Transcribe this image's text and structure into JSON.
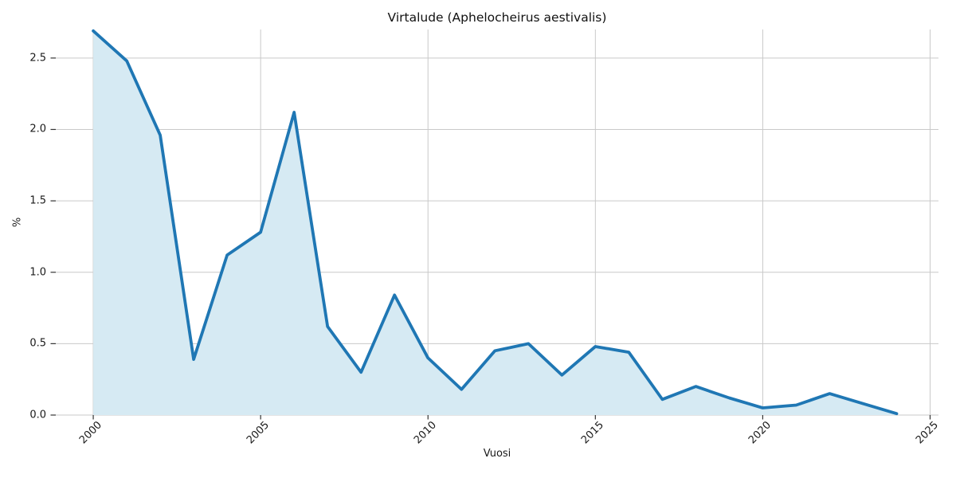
{
  "chart_data": {
    "type": "area",
    "title": "Virtalude (Aphelocheirus aestivalis)",
    "xlabel": "Vuosi",
    "ylabel": "%",
    "x": [
      2000,
      2001,
      2002,
      2003,
      2004,
      2005,
      2006,
      2007,
      2008,
      2009,
      2010,
      2011,
      2012,
      2013,
      2014,
      2015,
      2016,
      2017,
      2018,
      2019,
      2020,
      2021,
      2022,
      2023,
      2024
    ],
    "series": [
      {
        "name": "Virtalude (Aphelocheirus aestivalis)",
        "values": [
          2.69,
          2.48,
          1.96,
          0.39,
          1.12,
          1.28,
          2.12,
          0.62,
          0.3,
          0.84,
          0.4,
          0.18,
          0.45,
          0.5,
          0.28,
          0.48,
          0.44,
          0.11,
          0.2,
          0.12,
          0.05,
          0.07,
          0.15,
          0.08,
          0.01
        ]
      }
    ],
    "xlim": [
      1998.88,
      2025.25
    ],
    "ylim": [
      0,
      2.7
    ],
    "xticks": [
      2000,
      2005,
      2010,
      2015,
      2020,
      2025
    ],
    "yticks": [
      0,
      0.5,
      1,
      1.5,
      2,
      2.5
    ],
    "x_tick_labels": [
      "2000",
      "2005",
      "2010",
      "2015",
      "2020",
      "2025"
    ],
    "y_tick_labels": [
      "0.0",
      "0.5",
      "1.0",
      "1.5",
      "2.0",
      "2.5"
    ],
    "grid": true,
    "legend": "none",
    "colors": {
      "line": "#1f77b4",
      "fill": "#d6eaf3",
      "grid": "#c9c9c9",
      "tick": "#333333",
      "text": "#1a1a1a"
    }
  }
}
